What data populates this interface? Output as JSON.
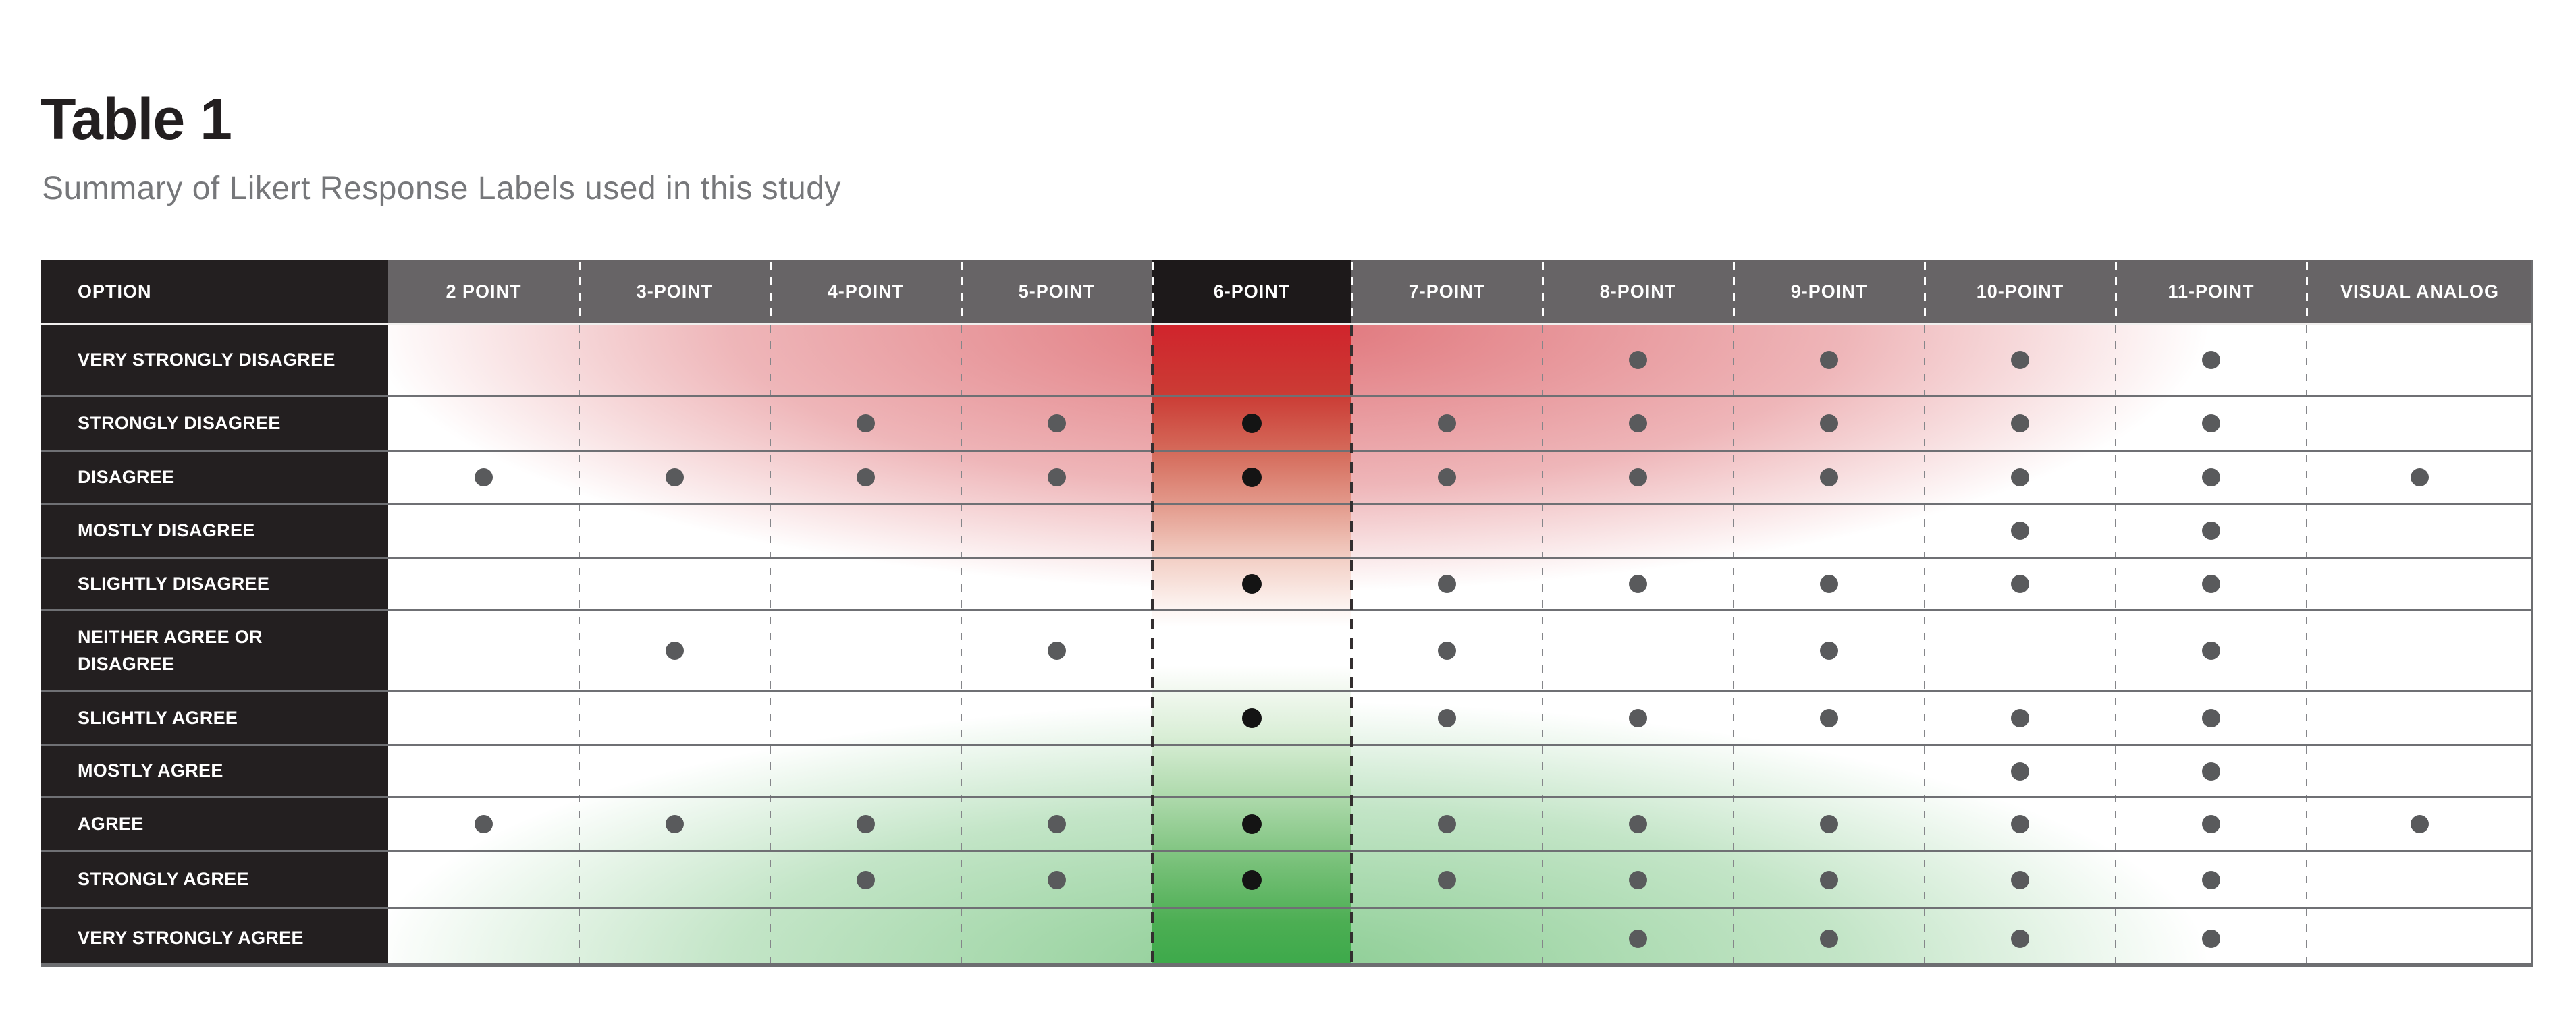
{
  "chart_data": {
    "type": "table",
    "title": "Table 1",
    "subtitle": "Summary of Likert Response Labels used in this study",
    "columns": [
      "OPTION",
      "2 POINT",
      "3-POINT",
      "4-POINT",
      "5-POINT",
      "6-POINT",
      "7-POINT",
      "8-POINT",
      "9-POINT",
      "10-POINT",
      "11-POINT",
      "VISUAL ANALOG"
    ],
    "highlighted_column": "6-POINT",
    "rows": [
      {
        "label": "VERY STRONGLY DISAGREE",
        "marks": [
          0,
          0,
          0,
          0,
          0,
          0,
          1,
          1,
          1,
          1,
          0
        ]
      },
      {
        "label": "STRONGLY DISAGREE",
        "marks": [
          0,
          0,
          1,
          1,
          1,
          1,
          1,
          1,
          1,
          1,
          0
        ]
      },
      {
        "label": "DISAGREE",
        "marks": [
          1,
          1,
          1,
          1,
          1,
          1,
          1,
          1,
          1,
          1,
          1
        ]
      },
      {
        "label": "MOSTLY DISAGREE",
        "marks": [
          0,
          0,
          0,
          0,
          0,
          0,
          0,
          0,
          1,
          1,
          0
        ]
      },
      {
        "label": "SLIGHTLY DISAGREE",
        "marks": [
          0,
          0,
          0,
          0,
          1,
          1,
          1,
          1,
          1,
          1,
          0
        ]
      },
      {
        "label": "NEITHER AGREE OR DISAGREE",
        "marks": [
          0,
          1,
          0,
          1,
          0,
          1,
          0,
          1,
          0,
          1,
          0
        ]
      },
      {
        "label": "SLIGHTLY AGREE",
        "marks": [
          0,
          0,
          0,
          0,
          1,
          1,
          1,
          1,
          1,
          1,
          0
        ]
      },
      {
        "label": "MOSTLY AGREE",
        "marks": [
          0,
          0,
          0,
          0,
          0,
          0,
          0,
          0,
          1,
          1,
          0
        ]
      },
      {
        "label": "AGREE",
        "marks": [
          1,
          1,
          1,
          1,
          1,
          1,
          1,
          1,
          1,
          1,
          1
        ]
      },
      {
        "label": "STRONGLY AGREE",
        "marks": [
          0,
          0,
          1,
          1,
          1,
          1,
          1,
          1,
          1,
          1,
          0
        ]
      },
      {
        "label": "VERY STRONGLY AGREE",
        "marks": [
          0,
          0,
          0,
          0,
          0,
          0,
          1,
          1,
          1,
          1,
          0
        ]
      }
    ],
    "legend_position": "none",
    "grid": "on"
  },
  "colors": {
    "red_peak": "#d0242c",
    "green_peak": "#3ca94a",
    "header_gray": "#676466",
    "header_black": "#1d191a",
    "label_black": "#231f20",
    "dot_gray": "#595a5c",
    "dot_black": "#141414",
    "row_line": "#6f7074",
    "title_black": "#231f20",
    "subtitle_gray": "#76777a"
  }
}
